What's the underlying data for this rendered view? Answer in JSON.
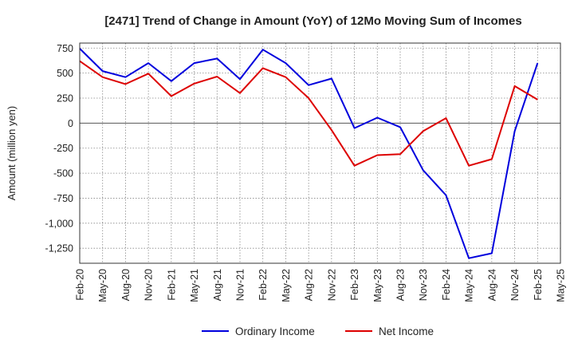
{
  "chart_data": {
    "type": "line",
    "title": "[2471]  Trend of Change in Amount (YoY) of 12Mo Moving Sum of Incomes",
    "xlabel": "",
    "ylabel": "Amount (million yen)",
    "ylim": [
      -1400,
      800
    ],
    "yticks": [
      750,
      500,
      250,
      0,
      -250,
      -500,
      -750,
      -1000,
      -1250
    ],
    "ytick_labels": [
      "750",
      "500",
      "250",
      "0",
      "-250",
      "-500",
      "-750",
      "-1,000",
      "-1,250"
    ],
    "x": [
      "Feb-20",
      "May-20",
      "Aug-20",
      "Nov-20",
      "Feb-21",
      "May-21",
      "Aug-21",
      "Nov-21",
      "Feb-22",
      "May-22",
      "Aug-22",
      "Nov-22",
      "Feb-23",
      "May-23",
      "Aug-23",
      "Nov-23",
      "Feb-24",
      "May-24",
      "Aug-24",
      "Nov-24",
      "Feb-25",
      "May-25"
    ],
    "grid": true,
    "legend": "bottom",
    "series": [
      {
        "name": "Ordinary Income",
        "color": "#0000dd",
        "values": [
          745,
          520,
          460,
          600,
          420,
          600,
          645,
          440,
          735,
          600,
          380,
          445,
          -50,
          55,
          -40,
          -470,
          -720,
          -1350,
          -1300,
          -80,
          600,
          null
        ]
      },
      {
        "name": "Net Income",
        "color": "#dd0000",
        "values": [
          620,
          460,
          390,
          495,
          270,
          395,
          465,
          300,
          550,
          460,
          250,
          -70,
          -425,
          -320,
          -310,
          -80,
          50,
          -425,
          -360,
          370,
          235,
          null
        ]
      }
    ]
  }
}
